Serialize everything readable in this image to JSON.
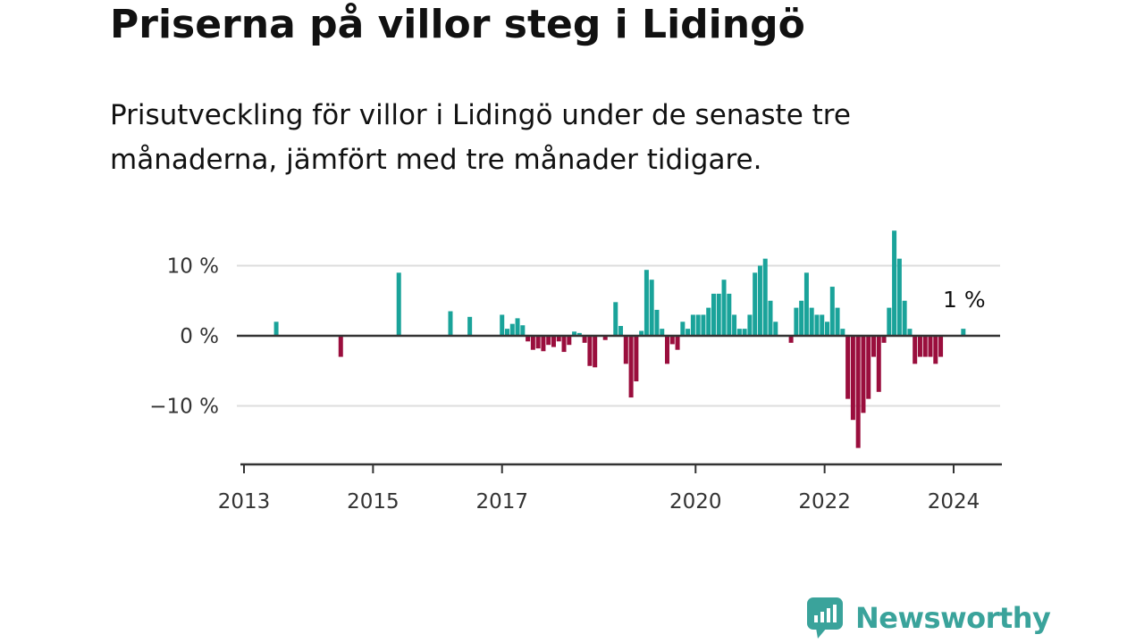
{
  "header": {
    "title": "Priserna på villor steg i Lidingö",
    "subtitle": "Prisutveckling för villor i Lidingö under de senaste tre månaderna, jämfört med tre månader tidigare."
  },
  "brand": {
    "name": "Newsworthy"
  },
  "colors": {
    "positive": "#1aa39a",
    "negative": "#9a0e3d",
    "grid": "#dddddd",
    "axis": "#333333",
    "brand": "#3aa39b"
  },
  "chart_data": {
    "type": "bar",
    "title": "Priserna på villor steg i Lidingö",
    "subtitle": "Prisutveckling för villor i Lidingö under de senaste tre månaderna, jämfört med tre månader tidigare.",
    "xlabel": "",
    "ylabel": "",
    "ylim": [
      -18,
      15
    ],
    "y_ticks": [
      {
        "value": 10,
        "label": "10 %"
      },
      {
        "value": 0,
        "label": "0 %"
      },
      {
        "value": -10,
        "label": "−10 %"
      }
    ],
    "x_ticks": [
      {
        "value": 2013.0,
        "label": "2013"
      },
      {
        "value": 2015.0,
        "label": "2015"
      },
      {
        "value": 2017.0,
        "label": "2017"
      },
      {
        "value": 2020.0,
        "label": "2020"
      },
      {
        "value": 2022.0,
        "label": "2022"
      },
      {
        "value": 2024.0,
        "label": "2024"
      }
    ],
    "xlim": [
      2013.0,
      2024.7
    ],
    "grid": true,
    "last_value_label": "1 %",
    "points": [
      {
        "x": 2013.5,
        "y": 2.0
      },
      {
        "x": 2014.5,
        "y": -3.0
      },
      {
        "x": 2015.4,
        "y": 9.0
      },
      {
        "x": 2016.2,
        "y": 3.5
      },
      {
        "x": 2016.5,
        "y": 2.7
      },
      {
        "x": 2017.0,
        "y": 3.0
      },
      {
        "x": 2017.08,
        "y": 1.0
      },
      {
        "x": 2017.16,
        "y": 1.7
      },
      {
        "x": 2017.24,
        "y": 2.5
      },
      {
        "x": 2017.32,
        "y": 1.5
      },
      {
        "x": 2017.4,
        "y": -0.8
      },
      {
        "x": 2017.48,
        "y": -2.0
      },
      {
        "x": 2017.56,
        "y": -1.8
      },
      {
        "x": 2017.64,
        "y": -2.2
      },
      {
        "x": 2017.72,
        "y": -1.3
      },
      {
        "x": 2017.8,
        "y": -1.6
      },
      {
        "x": 2017.88,
        "y": -0.8
      },
      {
        "x": 2017.96,
        "y": -2.3
      },
      {
        "x": 2018.04,
        "y": -1.3
      },
      {
        "x": 2018.12,
        "y": 0.6
      },
      {
        "x": 2018.2,
        "y": 0.4
      },
      {
        "x": 2018.28,
        "y": -1.0
      },
      {
        "x": 2018.36,
        "y": -4.3
      },
      {
        "x": 2018.44,
        "y": -4.5
      },
      {
        "x": 2018.6,
        "y": -0.6
      },
      {
        "x": 2018.76,
        "y": 4.8
      },
      {
        "x": 2018.84,
        "y": 1.4
      },
      {
        "x": 2018.92,
        "y": -4.0
      },
      {
        "x": 2019.0,
        "y": -8.8
      },
      {
        "x": 2019.08,
        "y": -6.5
      },
      {
        "x": 2019.16,
        "y": 0.7
      },
      {
        "x": 2019.24,
        "y": 9.4
      },
      {
        "x": 2019.32,
        "y": 8.0
      },
      {
        "x": 2019.4,
        "y": 3.7
      },
      {
        "x": 2019.48,
        "y": 1.0
      },
      {
        "x": 2019.56,
        "y": -4.0
      },
      {
        "x": 2019.64,
        "y": -1.2
      },
      {
        "x": 2019.72,
        "y": -2.0
      },
      {
        "x": 2019.8,
        "y": 2.0
      },
      {
        "x": 2019.88,
        "y": 1.0
      },
      {
        "x": 2019.96,
        "y": 3.0
      },
      {
        "x": 2020.04,
        "y": 3.0
      },
      {
        "x": 2020.12,
        "y": 3.0
      },
      {
        "x": 2020.2,
        "y": 4.0
      },
      {
        "x": 2020.28,
        "y": 6.0
      },
      {
        "x": 2020.36,
        "y": 6.0
      },
      {
        "x": 2020.44,
        "y": 8.0
      },
      {
        "x": 2020.52,
        "y": 6.0
      },
      {
        "x": 2020.6,
        "y": 3.0
      },
      {
        "x": 2020.68,
        "y": 1.0
      },
      {
        "x": 2020.76,
        "y": 1.0
      },
      {
        "x": 2020.84,
        "y": 3.0
      },
      {
        "x": 2020.92,
        "y": 9.0
      },
      {
        "x": 2021.0,
        "y": 10.0
      },
      {
        "x": 2021.08,
        "y": 11.0
      },
      {
        "x": 2021.16,
        "y": 5.0
      },
      {
        "x": 2021.24,
        "y": 2.0
      },
      {
        "x": 2021.48,
        "y": -1.0
      },
      {
        "x": 2021.56,
        "y": 4.0
      },
      {
        "x": 2021.64,
        "y": 5.0
      },
      {
        "x": 2021.72,
        "y": 9.0
      },
      {
        "x": 2021.8,
        "y": 4.0
      },
      {
        "x": 2021.88,
        "y": 3.0
      },
      {
        "x": 2021.96,
        "y": 3.0
      },
      {
        "x": 2022.04,
        "y": 2.0
      },
      {
        "x": 2022.12,
        "y": 7.0
      },
      {
        "x": 2022.2,
        "y": 4.0
      },
      {
        "x": 2022.28,
        "y": 1.0
      },
      {
        "x": 2022.36,
        "y": -9.0
      },
      {
        "x": 2022.44,
        "y": -12.0
      },
      {
        "x": 2022.52,
        "y": -16.0
      },
      {
        "x": 2022.6,
        "y": -11.0
      },
      {
        "x": 2022.68,
        "y": -9.0
      },
      {
        "x": 2022.76,
        "y": -3.0
      },
      {
        "x": 2022.84,
        "y": -8.0
      },
      {
        "x": 2022.92,
        "y": -1.0
      },
      {
        "x": 2023.0,
        "y": 4.0
      },
      {
        "x": 2023.08,
        "y": 15.0
      },
      {
        "x": 2023.16,
        "y": 11.0
      },
      {
        "x": 2023.24,
        "y": 5.0
      },
      {
        "x": 2023.32,
        "y": 1.0
      },
      {
        "x": 2023.4,
        "y": -4.0
      },
      {
        "x": 2023.48,
        "y": -3.0
      },
      {
        "x": 2023.56,
        "y": -3.0
      },
      {
        "x": 2023.64,
        "y": -3.0
      },
      {
        "x": 2023.72,
        "y": -4.0
      },
      {
        "x": 2023.8,
        "y": -3.0
      },
      {
        "x": 2024.15,
        "y": 1.0
      }
    ]
  }
}
